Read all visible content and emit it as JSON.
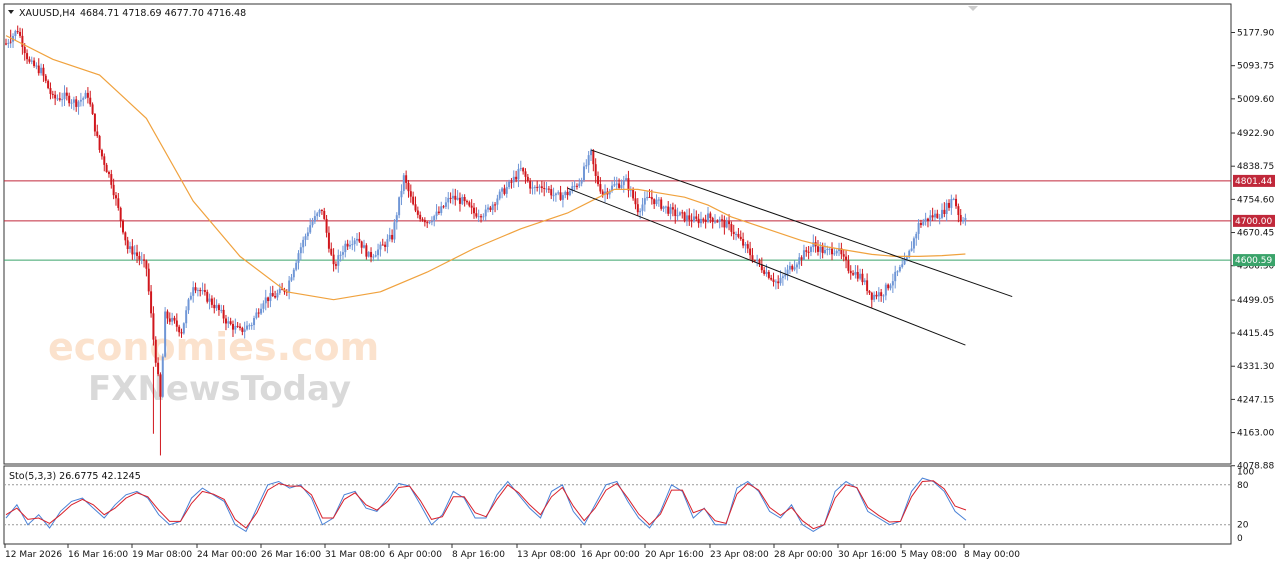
{
  "header": {
    "symbol": "XAUUSD,H4",
    "ohlc": "4684.71 4718.69 4677.70 4716.48"
  },
  "stoch_header": "Sto(5,3,3) 26.6775 42.1245",
  "watermark": {
    "line1": "economies.com",
    "line2": "FXNewsToday"
  },
  "colors": {
    "bull": "#6f96d6",
    "bear": "#d0161c",
    "ma": "#f0a23e",
    "res_line": "#c0283a",
    "sup_line": "#3aa36a",
    "stoch_main": "#4a82d6",
    "stoch_signal": "#d9202a"
  },
  "levels": [
    {
      "value": 4801.44,
      "label": "4801.44",
      "type": "resistance"
    },
    {
      "value": 4700.0,
      "label": "4700.00",
      "type": "resistance"
    },
    {
      "value": 4600.59,
      "label": "4600.59",
      "type": "support"
    }
  ],
  "chart_data": [
    {
      "type": "candlestick",
      "symbol": "XAUUSD",
      "timeframe": "H4",
      "ylim": [
        4078.88,
        5200
      ],
      "yticks": [
        "5177.90",
        "5093.75",
        "5009.60",
        "4922.90",
        "4838.75",
        "4754.60",
        "4670.45",
        "4586.30",
        "4499.05",
        "4415.45",
        "4331.30",
        "4247.15",
        "4163.00",
        "4078.88"
      ],
      "xticks": [
        "12 Mar 2026",
        "16 Mar 16:00",
        "19 Mar 08:00",
        "24 Mar 00:00",
        "26 Mar 16:00",
        "31 Mar 08:00",
        "6 Apr 00:00",
        "8 Apr 16:00",
        "13 Apr 08:00",
        "16 Apr 00:00",
        "20 Apr 16:00",
        "23 Apr 08:00",
        "28 Apr 00:00",
        "30 Apr 16:00",
        "5 May 08:00",
        "8 May 00:00"
      ],
      "series_path": [
        [
          0,
          5150
        ],
        [
          5,
          5185
        ],
        [
          10,
          5100
        ],
        [
          15,
          5080
        ],
        [
          20,
          5010
        ],
        [
          25,
          5015
        ],
        [
          30,
          5000
        ],
        [
          35,
          5020
        ],
        [
          40,
          4880
        ],
        [
          45,
          4800
        ],
        [
          50,
          4680
        ],
        [
          52,
          4630
        ],
        [
          55,
          4620
        ],
        [
          60,
          4580
        ],
        [
          63,
          4400
        ],
        [
          66,
          4250
        ],
        [
          68,
          4460
        ],
        [
          72,
          4440
        ],
        [
          75,
          4420
        ],
        [
          80,
          4540
        ],
        [
          85,
          4510
        ],
        [
          90,
          4480
        ],
        [
          95,
          4440
        ],
        [
          100,
          4420
        ],
        [
          105,
          4440
        ],
        [
          110,
          4500
        ],
        [
          115,
          4510
        ],
        [
          120,
          4530
        ],
        [
          125,
          4620
        ],
        [
          130,
          4690
        ],
        [
          135,
          4730
        ],
        [
          140,
          4580
        ],
        [
          145,
          4640
        ],
        [
          150,
          4660
        ],
        [
          155,
          4610
        ],
        [
          160,
          4630
        ],
        [
          165,
          4660
        ],
        [
          170,
          4810
        ],
        [
          175,
          4720
        ],
        [
          180,
          4700
        ],
        [
          185,
          4720
        ],
        [
          190,
          4760
        ],
        [
          195,
          4750
        ],
        [
          200,
          4720
        ],
        [
          205,
          4720
        ],
        [
          210,
          4760
        ],
        [
          215,
          4790
        ],
        [
          220,
          4830
        ],
        [
          225,
          4780
        ],
        [
          230,
          4790
        ],
        [
          235,
          4760
        ],
        [
          240,
          4770
        ],
        [
          245,
          4800
        ],
        [
          250,
          4870
        ],
        [
          252,
          4810
        ],
        [
          255,
          4770
        ],
        [
          260,
          4790
        ],
        [
          265,
          4800
        ],
        [
          270,
          4730
        ],
        [
          275,
          4760
        ],
        [
          280,
          4740
        ],
        [
          285,
          4720
        ],
        [
          290,
          4710
        ],
        [
          295,
          4700
        ],
        [
          300,
          4710
        ],
        [
          305,
          4700
        ],
        [
          310,
          4680
        ],
        [
          315,
          4640
        ],
        [
          320,
          4600
        ],
        [
          325,
          4570
        ],
        [
          330,
          4540
        ],
        [
          335,
          4580
        ],
        [
          340,
          4610
        ],
        [
          345,
          4640
        ],
        [
          350,
          4620
        ],
        [
          355,
          4630
        ],
        [
          360,
          4580
        ],
        [
          365,
          4560
        ],
        [
          370,
          4510
        ],
        [
          375,
          4520
        ],
        [
          380,
          4560
        ],
        [
          385,
          4600
        ],
        [
          390,
          4690
        ],
        [
          395,
          4710
        ],
        [
          400,
          4720
        ],
        [
          405,
          4760
        ],
        [
          408,
          4700
        ],
        [
          410,
          4716
        ]
      ],
      "series": [
        {
          "name": "",
          "kind": "moving_average",
          "points": [
            [
              0,
              5170
            ],
            [
              20,
              5110
            ],
            [
              40,
              5070
            ],
            [
              60,
              4960
            ],
            [
              80,
              4750
            ],
            [
              100,
              4610
            ],
            [
              120,
              4520
            ],
            [
              140,
              4500
            ],
            [
              160,
              4520
            ],
            [
              180,
              4570
            ],
            [
              200,
              4630
            ],
            [
              220,
              4680
            ],
            [
              240,
              4720
            ],
            [
              250,
              4750
            ],
            [
              260,
              4780
            ],
            [
              270,
              4780
            ],
            [
              280,
              4770
            ],
            [
              290,
              4760
            ],
            [
              300,
              4740
            ],
            [
              310,
              4710
            ],
            [
              320,
              4690
            ],
            [
              330,
              4670
            ],
            [
              340,
              4650
            ],
            [
              350,
              4635
            ],
            [
              360,
              4625
            ],
            [
              370,
              4615
            ],
            [
              380,
              4610
            ],
            [
              390,
              4610
            ],
            [
              400,
              4612
            ],
            [
              410,
              4616
            ]
          ]
        }
      ],
      "trend_lines": [
        {
          "from": [
            250,
            4880
          ],
          "to": [
            430,
            4508
          ]
        },
        {
          "from": [
            240,
            4783
          ],
          "to": [
            410,
            4385
          ]
        }
      ]
    },
    {
      "type": "line",
      "name": "Stochastic",
      "params": "(5,3,3)",
      "ylim": [
        0,
        100
      ],
      "yticks": [
        "100",
        "80",
        "20",
        "0"
      ],
      "levels": [
        80,
        20
      ],
      "series": [
        {
          "name": "26.6775",
          "values": [
            30,
            50,
            20,
            35,
            15,
            40,
            55,
            60,
            45,
            30,
            50,
            65,
            70,
            60,
            35,
            20,
            25,
            60,
            75,
            65,
            55,
            20,
            10,
            45,
            80,
            85,
            75,
            80,
            60,
            20,
            30,
            65,
            70,
            45,
            40,
            60,
            82,
            78,
            50,
            20,
            35,
            70,
            60,
            30,
            30,
            65,
            85,
            65,
            45,
            30,
            70,
            80,
            40,
            20,
            50,
            80,
            85,
            55,
            30,
            15,
            40,
            80,
            70,
            30,
            45,
            20,
            20,
            75,
            85,
            70,
            40,
            30,
            50,
            20,
            10,
            20,
            70,
            85,
            75,
            40,
            30,
            20,
            25,
            70,
            90,
            85,
            70,
            40,
            26.68
          ]
        },
        {
          "name": "42.1245",
          "values": [
            35,
            45,
            28,
            30,
            22,
            35,
            50,
            58,
            50,
            35,
            45,
            60,
            68,
            62,
            42,
            25,
            25,
            52,
            70,
            66,
            58,
            28,
            15,
            38,
            72,
            82,
            78,
            78,
            65,
            30,
            30,
            58,
            68,
            50,
            42,
            55,
            76,
            78,
            56,
            28,
            32,
            62,
            62,
            38,
            32,
            58,
            80,
            68,
            50,
            35,
            62,
            76,
            48,
            26,
            45,
            72,
            82,
            60,
            36,
            20,
            36,
            72,
            72,
            38,
            44,
            26,
            22,
            66,
            82,
            72,
            46,
            34,
            46,
            26,
            14,
            20,
            60,
            80,
            76,
            46,
            34,
            24,
            25,
            62,
            85,
            86,
            74,
            48,
            42.12
          ]
        }
      ]
    }
  ]
}
